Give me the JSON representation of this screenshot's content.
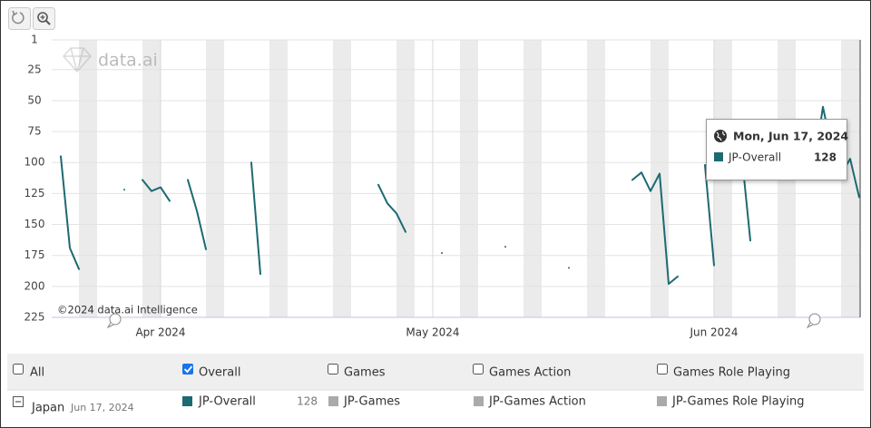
{
  "chart_data": {
    "type": "line",
    "watermark": "data.ai",
    "credit": "©2024 data.ai Intelligence",
    "x": [
      "2024-03-20",
      "2024-03-21",
      "2024-03-22",
      "2024-03-23",
      "2024-03-24",
      "2024-03-25",
      "2024-03-26",
      "2024-03-27",
      "2024-03-28",
      "2024-03-29",
      "2024-03-30",
      "2024-03-31",
      "2024-04-01",
      "2024-04-02",
      "2024-04-03",
      "2024-04-04",
      "2024-04-05",
      "2024-04-06",
      "2024-04-07",
      "2024-04-08",
      "2024-04-09",
      "2024-04-10",
      "2024-04-11",
      "2024-04-12",
      "2024-04-13",
      "2024-04-14",
      "2024-04-15",
      "2024-04-16",
      "2024-04-17",
      "2024-04-18",
      "2024-04-19",
      "2024-04-20",
      "2024-04-21",
      "2024-04-22",
      "2024-04-23",
      "2024-04-24",
      "2024-04-25",
      "2024-04-26",
      "2024-04-27",
      "2024-04-28",
      "2024-04-29",
      "2024-04-30",
      "2024-05-01",
      "2024-05-02",
      "2024-05-03",
      "2024-05-04",
      "2024-05-05",
      "2024-05-06",
      "2024-05-07",
      "2024-05-08",
      "2024-05-09",
      "2024-05-10",
      "2024-05-11",
      "2024-05-12",
      "2024-05-13",
      "2024-05-14",
      "2024-05-15",
      "2024-05-16",
      "2024-05-17",
      "2024-05-18",
      "2024-05-19",
      "2024-05-20",
      "2024-05-21",
      "2024-05-22",
      "2024-05-23",
      "2024-05-24",
      "2024-05-25",
      "2024-05-26",
      "2024-05-27",
      "2024-05-28",
      "2024-05-29",
      "2024-05-30",
      "2024-05-31",
      "2024-06-01",
      "2024-06-02",
      "2024-06-03",
      "2024-06-04",
      "2024-06-05",
      "2024-06-06",
      "2024-06-07",
      "2024-06-08",
      "2024-06-09",
      "2024-06-10",
      "2024-06-11",
      "2024-06-12",
      "2024-06-13",
      "2024-06-14",
      "2024-06-15",
      "2024-06-16",
      "2024-06-17"
    ],
    "xlim": [
      "2024-03-20",
      "2024-06-17"
    ],
    "xticks": [
      {
        "value": "2024-04-01",
        "label": "Apr 2024"
      },
      {
        "value": "2024-05-01",
        "label": "May 2024"
      },
      {
        "value": "2024-06-01",
        "label": "Jun 2024"
      }
    ],
    "ylim": [
      1,
      225
    ],
    "inverted": true,
    "yticks": [
      1,
      25,
      50,
      75,
      100,
      125,
      150,
      175,
      200,
      225
    ],
    "grid": true,
    "weekend_bands": true,
    "series": [
      {
        "name": "JP-Overall",
        "color": "#1c6a72",
        "values": [
          null,
          95,
          169,
          186,
          null,
          null,
          null,
          null,
          122,
          null,
          114,
          123,
          120,
          131,
          null,
          114,
          139,
          170,
          null,
          null,
          null,
          null,
          100,
          190,
          null,
          null,
          null,
          null,
          null,
          null,
          null,
          null,
          null,
          null,
          null,
          null,
          118,
          133,
          141,
          156,
          null,
          null,
          null,
          173,
          null,
          null,
          null,
          null,
          null,
          null,
          168,
          null,
          null,
          null,
          null,
          null,
          null,
          185,
          null,
          null,
          null,
          null,
          null,
          null,
          114,
          108,
          123,
          109,
          198,
          192,
          null,
          null,
          102,
          183,
          null,
          null,
          90,
          163,
          null,
          null,
          null,
          null,
          null,
          null,
          105,
          55,
          90,
          110,
          97,
          128
        ]
      }
    ],
    "tooltip": {
      "date": "Mon, Jun 17, 2024"
    }
  },
  "filters": [
    {
      "label": "All",
      "checked": false
    },
    {
      "label": "Overall",
      "checked": true
    },
    {
      "label": "Games",
      "checked": false
    },
    {
      "label": "Games Action",
      "checked": false
    },
    {
      "label": "Games Role Playing",
      "checked": false
    }
  ],
  "legend": {
    "country": "Japan",
    "date": "Jun 17, 2024",
    "other_series": [
      {
        "name": "JP-Games",
        "color": "#aaaaaa"
      },
      {
        "name": "JP-Games Action",
        "color": "#aaaaaa"
      },
      {
        "name": "JP-Games Role Playing",
        "color": "#aaaaaa"
      }
    ]
  }
}
